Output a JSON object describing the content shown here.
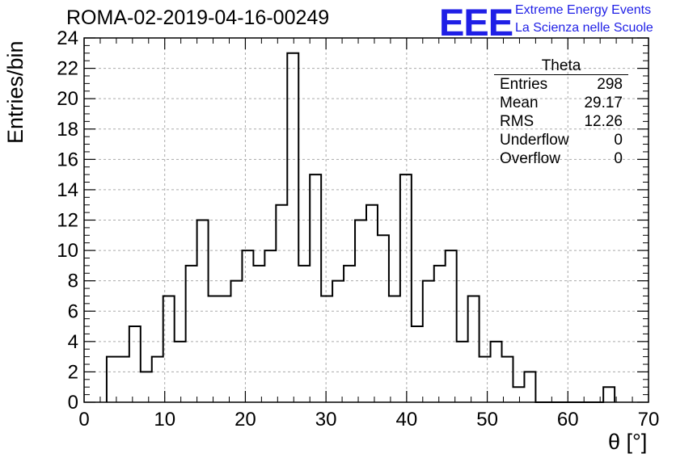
{
  "title": "ROMA-02-2019-04-16-00249",
  "logo": {
    "mark": "EEE",
    "line1": "Extreme Energy Events",
    "line2": "La Scienza nelle Scuole"
  },
  "stats": {
    "name": "Theta",
    "rows": [
      {
        "label": "Entries",
        "value": "298"
      },
      {
        "label": "Mean",
        "value": "29.17"
      },
      {
        "label": "RMS",
        "value": "12.26"
      },
      {
        "label": "Underflow",
        "value": "0"
      },
      {
        "label": "Overflow",
        "value": "0"
      }
    ]
  },
  "chart_data": {
    "type": "bar",
    "style": "step-histogram",
    "xlabel": "θ [°]",
    "ylabel": "Entries/bin",
    "xlim": [
      0,
      70
    ],
    "ylim": [
      0,
      24
    ],
    "xticks": [
      0,
      10,
      20,
      30,
      40,
      50,
      60,
      70
    ],
    "yticks": [
      0,
      2,
      4,
      6,
      8,
      10,
      12,
      14,
      16,
      18,
      20,
      22,
      24
    ],
    "grid": true,
    "bin_width": 1.4,
    "bin_start": 2.8,
    "values": [
      3,
      3,
      5,
      2,
      3,
      7,
      4,
      9,
      12,
      7,
      7,
      8,
      10,
      9,
      10,
      13,
      23,
      9,
      15,
      7,
      8,
      9,
      12,
      13,
      11,
      7,
      15,
      5,
      8,
      9,
      10,
      4,
      7,
      3,
      4,
      3,
      1,
      2,
      0,
      0,
      0,
      0,
      0,
      0,
      1
    ]
  }
}
